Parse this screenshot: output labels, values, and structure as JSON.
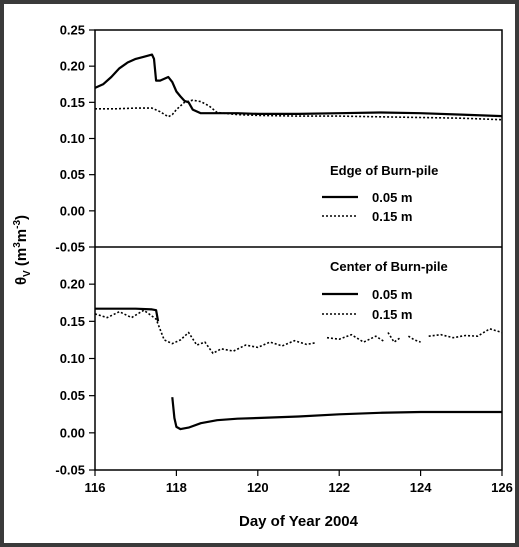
{
  "chart_data": [
    {
      "type": "line",
      "panel": "top",
      "legend_title": "Edge of Burn-pile",
      "legend_placement": "center-right",
      "xlim": [
        116,
        126
      ],
      "ylim": [
        -0.05,
        0.25
      ],
      "yticks": [
        "-0.05",
        "0.00",
        "0.05",
        "0.10",
        "0.15",
        "0.20",
        "0.25"
      ],
      "series": [
        {
          "name": "0.05 m",
          "style": "solid",
          "x": [
            116.0,
            116.2,
            116.4,
            116.6,
            116.8,
            117.0,
            117.2,
            117.4,
            117.45,
            117.5,
            117.6,
            117.8,
            117.9,
            118.0,
            118.1,
            118.2,
            118.3,
            118.4,
            118.6,
            119.0,
            119.5,
            120.0,
            121.0,
            122.0,
            123.0,
            124.0,
            125.0,
            126.0
          ],
          "y": [
            0.17,
            0.175,
            0.185,
            0.197,
            0.205,
            0.21,
            0.213,
            0.216,
            0.21,
            0.18,
            0.18,
            0.185,
            0.178,
            0.165,
            0.158,
            0.152,
            0.15,
            0.14,
            0.135,
            0.135,
            0.135,
            0.134,
            0.134,
            0.135,
            0.136,
            0.135,
            0.133,
            0.131
          ]
        },
        {
          "name": "0.15 m",
          "style": "dotted",
          "x": [
            116.0,
            116.5,
            117.0,
            117.4,
            117.6,
            117.8,
            117.9,
            118.0,
            118.2,
            118.4,
            118.6,
            118.8,
            119.0,
            119.5,
            120.0,
            121.0,
            122.0,
            123.0,
            124.0,
            125.0,
            126.0
          ],
          "y": [
            0.141,
            0.141,
            0.142,
            0.142,
            0.137,
            0.13,
            0.133,
            0.14,
            0.15,
            0.153,
            0.151,
            0.145,
            0.136,
            0.133,
            0.132,
            0.131,
            0.131,
            0.13,
            0.129,
            0.128,
            0.126
          ]
        }
      ]
    },
    {
      "type": "line",
      "panel": "bottom",
      "legend_title": "Center of Burn-pile",
      "legend_placement": "top-right",
      "xlim": [
        116,
        126
      ],
      "ylim": [
        -0.05,
        0.25
      ],
      "yticks": [
        "-0.05",
        "0.00",
        "0.05",
        "0.10",
        "0.15",
        "0.20"
      ],
      "xticks": [
        "116",
        "118",
        "120",
        "122",
        "124",
        "126"
      ],
      "xlabel": "Day of Year 2004",
      "series": [
        {
          "name": "0.05 m",
          "style": "solid",
          "segments": [
            {
              "x": [
                116.0,
                116.5,
                117.0,
                117.4,
                117.5,
                117.55
              ],
              "y": [
                0.167,
                0.167,
                0.167,
                0.166,
                0.165,
                0.15
              ]
            },
            {
              "x": [
                117.9,
                117.95,
                118.0,
                118.1,
                118.3,
                118.6,
                119.0,
                119.5,
                120.0,
                121.0,
                122.0,
                123.0,
                124.0,
                125.0,
                126.0
              ],
              "y": [
                0.048,
                0.02,
                0.008,
                0.005,
                0.007,
                0.013,
                0.017,
                0.019,
                0.02,
                0.022,
                0.025,
                0.027,
                0.028,
                0.028,
                0.028
              ]
            }
          ]
        },
        {
          "name": "0.15 m",
          "style": "dotted",
          "segments": [
            {
              "x": [
                116.0,
                116.3,
                116.6,
                116.9,
                117.2,
                117.5,
                117.7,
                117.9,
                118.1,
                118.3,
                118.5,
                118.7,
                118.9,
                119.1,
                119.4,
                119.7,
                120.0,
                120.3,
                120.6,
                120.9,
                121.2,
                121.4
              ],
              "y": [
                0.16,
                0.155,
                0.163,
                0.155,
                0.165,
                0.153,
                0.125,
                0.12,
                0.125,
                0.135,
                0.118,
                0.122,
                0.107,
                0.113,
                0.11,
                0.118,
                0.115,
                0.122,
                0.117,
                0.124,
                0.119,
                0.121
              ]
            },
            {
              "x": [
                121.7,
                122.0,
                122.3,
                122.6,
                122.9,
                123.1
              ],
              "y": [
                0.128,
                0.126,
                0.132,
                0.122,
                0.13,
                0.123
              ]
            },
            {
              "x": [
                123.2,
                123.35,
                123.5
              ],
              "y": [
                0.135,
                0.122,
                0.128
              ]
            },
            {
              "x": [
                123.7,
                123.85,
                124.0
              ],
              "y": [
                0.13,
                0.125,
                0.122
              ]
            },
            {
              "x": [
                124.2,
                124.5,
                124.8,
                125.1,
                125.4,
                125.7,
                126.0
              ],
              "y": [
                0.13,
                0.132,
                0.128,
                0.131,
                0.13,
                0.14,
                0.135
              ]
            }
          ]
        }
      ]
    }
  ],
  "figure": {
    "ylabel_symbol": "θ",
    "ylabel_subscript": "V",
    "ylabel_units_prefix": " (m",
    "ylabel_units_sup1": "3",
    "ylabel_units_mid": "m",
    "ylabel_units_sup2": "-3",
    "ylabel_units_suffix": ")"
  }
}
